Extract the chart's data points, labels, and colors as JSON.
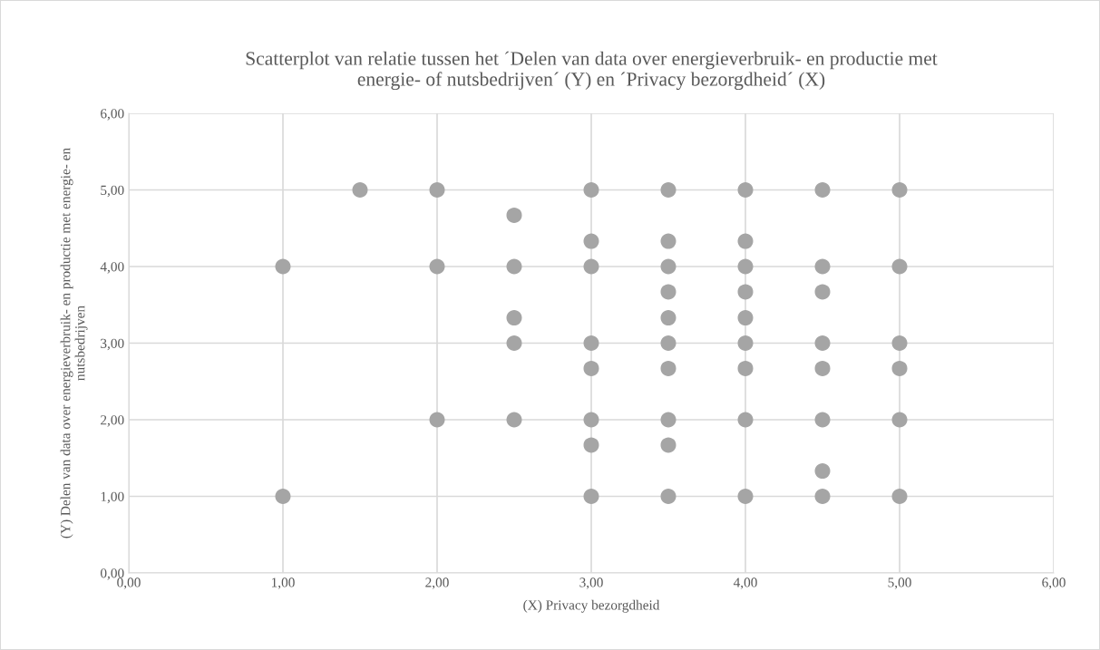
{
  "chart_data": {
    "type": "scatter",
    "title": "Scatterplot van relatie tussen het ´Delen van data over energieverbruik- en productie met\nenergie- of nutsbedrijven´ (Y) en ´Privacy bezorgdheid´ (X)",
    "xlabel": "(X) Privacy bezorgdheid",
    "ylabel": "(Y) Delen van data over energieverbruik- en productie met energie- en\nnutsbedrijven",
    "series": [
      {
        "color": "#a5a5a5",
        "x": [
          1,
          1,
          1.5,
          2,
          2,
          2,
          2.5,
          2.5,
          2.5,
          2.5,
          2.5,
          3,
          3,
          3,
          3,
          3,
          3,
          3,
          3,
          3.5,
          3.5,
          3.5,
          3.5,
          3.5,
          3.5,
          3.5,
          3.5,
          3.5,
          3.5,
          4,
          4,
          4,
          4,
          4,
          4,
          4,
          4,
          4,
          4.5,
          4.5,
          4.5,
          4.5,
          4.5,
          4.5,
          4.5,
          4.5,
          5,
          5,
          5,
          5,
          5,
          5
        ],
        "values": [
          4,
          1,
          5,
          5,
          4,
          2,
          4.67,
          4,
          3.33,
          3,
          2,
          5,
          4.33,
          4,
          3,
          2.67,
          2,
          1.67,
          1,
          5,
          4.33,
          4,
          3.67,
          3.33,
          3,
          2.67,
          2,
          1.67,
          1,
          5,
          4.33,
          4,
          3.67,
          3.33,
          3,
          2.67,
          2,
          1,
          5,
          4,
          3.67,
          3,
          2.67,
          2,
          1.33,
          1,
          5,
          4,
          3,
          2.67,
          2,
          1
        ]
      }
    ],
    "marker": "circle",
    "grid": true,
    "xlim": [
      0,
      6
    ],
    "ylim": [
      0,
      6
    ],
    "xticks": [
      {
        "value": 0,
        "label": "0,00"
      },
      {
        "value": 1,
        "label": "1,00"
      },
      {
        "value": 2,
        "label": "2,00"
      },
      {
        "value": 3,
        "label": "3,00"
      },
      {
        "value": 4,
        "label": "4,00"
      },
      {
        "value": 5,
        "label": "5,00"
      },
      {
        "value": 6,
        "label": "6,00"
      }
    ],
    "yticks": [
      {
        "value": 0,
        "label": "0,00"
      },
      {
        "value": 1,
        "label": "1,00"
      },
      {
        "value": 2,
        "label": "2,00"
      },
      {
        "value": 3,
        "label": "3,00"
      },
      {
        "value": 4,
        "label": "4,00"
      },
      {
        "value": 5,
        "label": "5,00"
      },
      {
        "value": 6,
        "label": "6,00"
      }
    ]
  }
}
